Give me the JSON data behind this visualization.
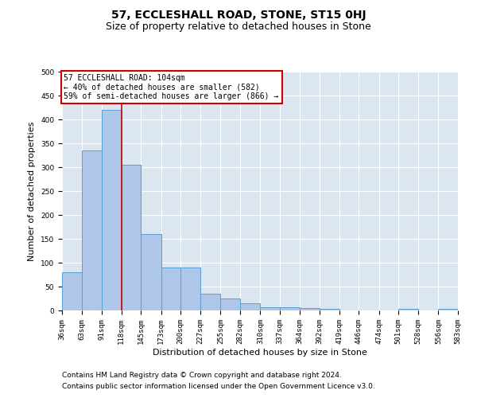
{
  "title": "57, ECCLESHALL ROAD, STONE, ST15 0HJ",
  "subtitle": "Size of property relative to detached houses in Stone",
  "xlabel": "Distribution of detached houses by size in Stone",
  "ylabel": "Number of detached properties",
  "bar_color": "#aec6e8",
  "bar_edge_color": "#5a9fd4",
  "background_color": "#dce6f0",
  "vline_x": 118,
  "bin_edges": [
    36,
    63,
    91,
    118,
    145,
    173,
    200,
    227,
    255,
    282,
    310,
    337,
    364,
    392,
    419,
    446,
    474,
    501,
    528,
    556,
    583
  ],
  "bar_heights": [
    80,
    335,
    420,
    305,
    160,
    90,
    90,
    35,
    25,
    15,
    7,
    7,
    5,
    3,
    0,
    0,
    0,
    3,
    0,
    3
  ],
  "annotation_box_text": "57 ECCLESHALL ROAD: 104sqm\n← 40% of detached houses are smaller (582)\n59% of semi-detached houses are larger (866) →",
  "annotation_box_color": "#ffffff",
  "annotation_box_edge_color": "#cc0000",
  "vline_color": "#cc0000",
  "footnote1": "Contains HM Land Registry data © Crown copyright and database right 2024.",
  "footnote2": "Contains public sector information licensed under the Open Government Licence v3.0.",
  "ylim": [
    0,
    500
  ],
  "yticks": [
    0,
    50,
    100,
    150,
    200,
    250,
    300,
    350,
    400,
    450,
    500
  ],
  "title_fontsize": 10,
  "subtitle_fontsize": 9,
  "label_fontsize": 8,
  "tick_fontsize": 6.5,
  "footnote_fontsize": 6.5,
  "ann_fontsize": 7
}
